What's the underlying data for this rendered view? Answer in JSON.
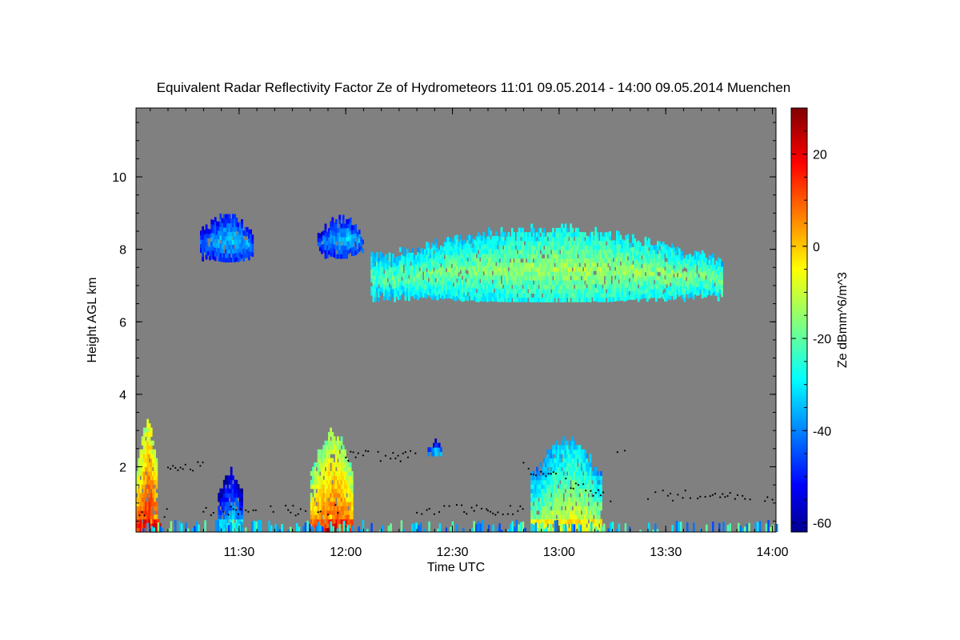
{
  "chart_data": {
    "type": "heatmap",
    "title": "Equivalent Radar Reflectivity Factor Ze of Hydrometeors   11:01 09.05.2014 - 14:00 09.05.2014 Muenchen",
    "xlabel": "Time UTC",
    "ylabel": "Height AGL km",
    "x_tick_labels": [
      "11:30",
      "12:00",
      "12:30",
      "13:00",
      "13:30",
      "14:00"
    ],
    "x_ticks_min": [
      90,
      120,
      150,
      180,
      210,
      240
    ],
    "xlim_min": [
      61,
      241
    ],
    "y_tick_labels": [
      "2",
      "4",
      "6",
      "8",
      "10"
    ],
    "y_ticks": [
      2,
      4,
      6,
      8,
      10
    ],
    "ylim": [
      0.2,
      11.9
    ],
    "background_color": "#808080",
    "colorbar": {
      "label": "Ze dBmm^6/m^3",
      "range": [
        -62,
        30
      ],
      "tick_labels": [
        "20",
        "0",
        "-20",
        "-40",
        "-60"
      ],
      "ticks": [
        20,
        0,
        -20,
        -40,
        -60
      ],
      "colormap": "jet"
    },
    "echo_regions": [
      {
        "t_min": 61,
        "t_max": 67,
        "z_bottom": 0.2,
        "z_top": 3.1,
        "ze_peak": 15
      },
      {
        "t_min": 65,
        "t_max": 68,
        "z_bottom": 0.2,
        "z_top": 0.6,
        "ze_peak": 25
      },
      {
        "t_min": 84,
        "t_max": 91,
        "z_bottom": 0.2,
        "z_top": 1.8,
        "ze_peak": -32
      },
      {
        "t_min": 110,
        "t_max": 122,
        "z_bottom": 0.2,
        "z_top": 2.9,
        "ze_peak": 10
      },
      {
        "t_min": 114,
        "t_max": 118,
        "z_bottom": 0.2,
        "z_top": 0.5,
        "ze_peak": 25
      },
      {
        "t_min": 143,
        "t_max": 147,
        "z_bottom": 2.3,
        "z_top": 2.6,
        "ze_peak": -30
      },
      {
        "t_min": 172,
        "t_max": 192,
        "z_bottom": 0.2,
        "z_top": 2.7,
        "ze_peak": -8
      },
      {
        "t_min": 79,
        "t_max": 94,
        "z_bottom": 7.6,
        "z_top": 8.9,
        "ze_peak": -32
      },
      {
        "t_min": 112,
        "t_max": 125,
        "z_bottom": 7.7,
        "z_top": 8.8,
        "ze_peak": -32
      },
      {
        "t_min": 127,
        "t_max": 226,
        "z_bottom": 6.5,
        "z_top": 8.5,
        "ze_peak": -12
      }
    ],
    "cloud_base_points_note": "black dots mark detected cloud base heights (approx. 0.7–2.5 km)"
  }
}
